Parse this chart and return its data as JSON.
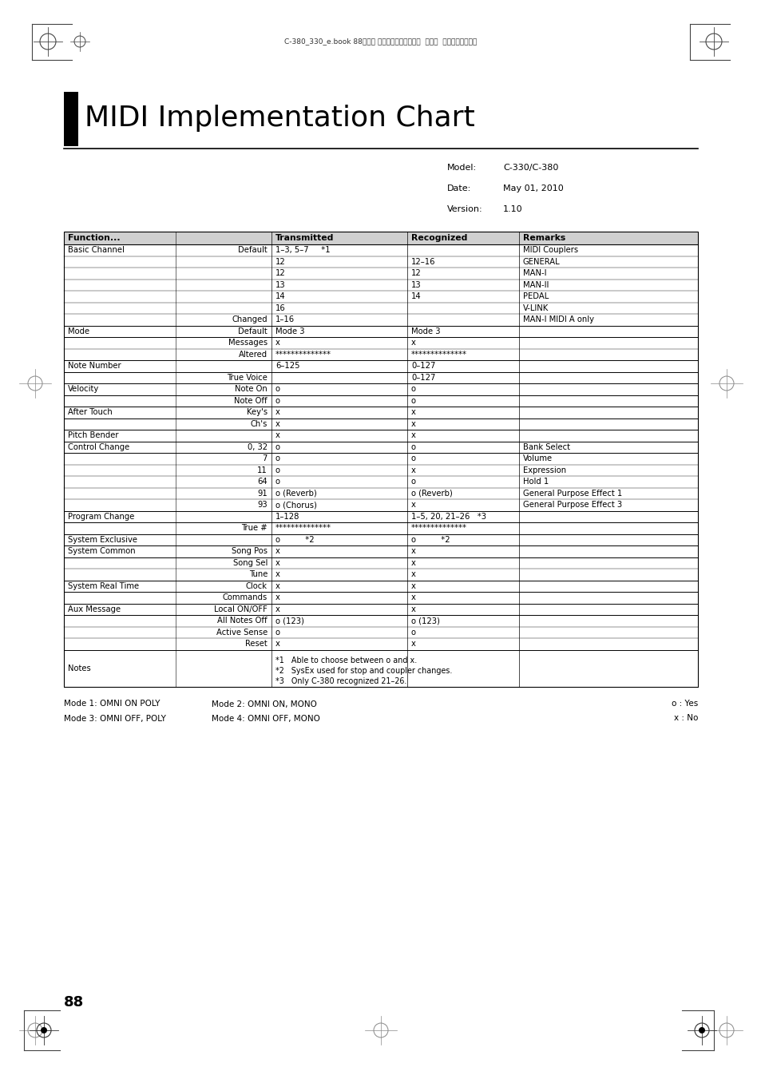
{
  "title": "MIDI Implementation Chart",
  "header_bar_text": "C-380_330_e.book 88ページ ２０１０年４月２８日  水曜日  午後１０時１１分",
  "model_label": "Model:",
  "model_value": "C-330/C-380",
  "date_label": "Date:",
  "date_value": "May 01, 2010",
  "version_label": "Version:",
  "version_value": "1.10",
  "col_headers": [
    "Function...",
    "Transmitted",
    "Recognized",
    "Remarks"
  ],
  "rows": [
    {
      "group": "Basic Channel",
      "sub": "Default",
      "tx": "1–3, 5–7     *1",
      "rx": "",
      "rem": "MIDI Couplers"
    },
    {
      "group": "",
      "sub": "",
      "tx": "12",
      "rx": "12–16",
      "rem": "GENERAL"
    },
    {
      "group": "",
      "sub": "",
      "tx": "12",
      "rx": "12",
      "rem": "MAN-I"
    },
    {
      "group": "",
      "sub": "",
      "tx": "13",
      "rx": "13",
      "rem": "MAN-II"
    },
    {
      "group": "",
      "sub": "",
      "tx": "14",
      "rx": "14",
      "rem": "PEDAL"
    },
    {
      "group": "",
      "sub": "",
      "tx": "16",
      "rx": "",
      "rem": "V-LINK"
    },
    {
      "group": "",
      "sub": "Changed",
      "tx": "1–16",
      "rx": "",
      "rem": "MAN-I MIDI A only"
    },
    {
      "group": "Mode",
      "sub": "Default",
      "tx": "Mode 3",
      "rx": "Mode 3",
      "rem": ""
    },
    {
      "group": "",
      "sub": "Messages",
      "tx": "x",
      "rx": "x",
      "rem": ""
    },
    {
      "group": "",
      "sub": "Altered",
      "tx": "**************",
      "rx": "**************",
      "rem": ""
    },
    {
      "group": "Note Number",
      "sub": "",
      "tx": "6–125",
      "rx": "0–127",
      "rem": ""
    },
    {
      "group": "",
      "sub": "True Voice",
      "tx": "",
      "rx": "0–127",
      "rem": ""
    },
    {
      "group": "Velocity",
      "sub": "Note On",
      "tx": "o",
      "rx": "o",
      "rem": ""
    },
    {
      "group": "",
      "sub": "Note Off",
      "tx": "o",
      "rx": "o",
      "rem": ""
    },
    {
      "group": "After Touch",
      "sub": "Key's",
      "tx": "x",
      "rx": "x",
      "rem": ""
    },
    {
      "group": "",
      "sub": "Ch's",
      "tx": "x",
      "rx": "x",
      "rem": ""
    },
    {
      "group": "Pitch Bender",
      "sub": "",
      "tx": "x",
      "rx": "x",
      "rem": ""
    },
    {
      "group": "Control Change",
      "sub": "0, 32",
      "tx": "o",
      "rx": "o",
      "rem": "Bank Select"
    },
    {
      "group": "",
      "sub": "7",
      "tx": "o",
      "rx": "o",
      "rem": "Volume"
    },
    {
      "group": "",
      "sub": "11",
      "tx": "o",
      "rx": "x",
      "rem": "Expression"
    },
    {
      "group": "",
      "sub": "64",
      "tx": "o",
      "rx": "o",
      "rem": "Hold 1"
    },
    {
      "group": "",
      "sub": "91",
      "tx": "o (Reverb)",
      "rx": "o (Reverb)",
      "rem": "General Purpose Effect 1"
    },
    {
      "group": "",
      "sub": "93",
      "tx": "o (Chorus)",
      "rx": "x",
      "rem": "General Purpose Effect 3"
    },
    {
      "group": "Program Change",
      "sub": "",
      "tx": "1–128",
      "rx": "1–5, 20, 21–26   *3",
      "rem": ""
    },
    {
      "group": "",
      "sub": "True #",
      "tx": "**************",
      "rx": "**************",
      "rem": ""
    },
    {
      "group": "System Exclusive",
      "sub": "",
      "tx": "o          *2",
      "rx": "o          *2",
      "rem": ""
    },
    {
      "group": "System Common",
      "sub": "Song Pos",
      "tx": "x",
      "rx": "x",
      "rem": ""
    },
    {
      "group": "",
      "sub": "Song Sel",
      "tx": "x",
      "rx": "x",
      "rem": ""
    },
    {
      "group": "",
      "sub": "Tune",
      "tx": "x",
      "rx": "x",
      "rem": ""
    },
    {
      "group": "System Real Time",
      "sub": "Clock",
      "tx": "x",
      "rx": "x",
      "rem": ""
    },
    {
      "group": "",
      "sub": "Commands",
      "tx": "x",
      "rx": "x",
      "rem": ""
    },
    {
      "group": "Aux Message",
      "sub": "Local ON/OFF",
      "tx": "x",
      "rx": "x",
      "rem": ""
    },
    {
      "group": "",
      "sub": "All Notes Off",
      "tx": "o (123)",
      "rx": "o (123)",
      "rem": ""
    },
    {
      "group": "",
      "sub": "Active Sense",
      "tx": "o",
      "rx": "o",
      "rem": ""
    },
    {
      "group": "",
      "sub": "Reset",
      "tx": "x",
      "rx": "x",
      "rem": ""
    },
    {
      "group": "Notes",
      "sub": "",
      "tx": "*1   Able to choose between o and x.\n*2   SysEx used for stop and coupler changes.\n*3   Only C-380 recognized 21–26.",
      "rx": "",
      "rem": ""
    }
  ],
  "footer_lines": [
    [
      "Mode 1: OMNI ON POLY",
      "Mode 2: OMNI ON, MONO",
      "o : Yes"
    ],
    [
      "Mode 3: OMNI OFF, POLY",
      "Mode 4: OMNI OFF, MONO",
      "x : No"
    ]
  ],
  "bg_color": "#ffffff",
  "header_bg": "#d0d0d0",
  "text_color": "#000000",
  "title_font_size": 26,
  "cell_font_size": 7.2
}
